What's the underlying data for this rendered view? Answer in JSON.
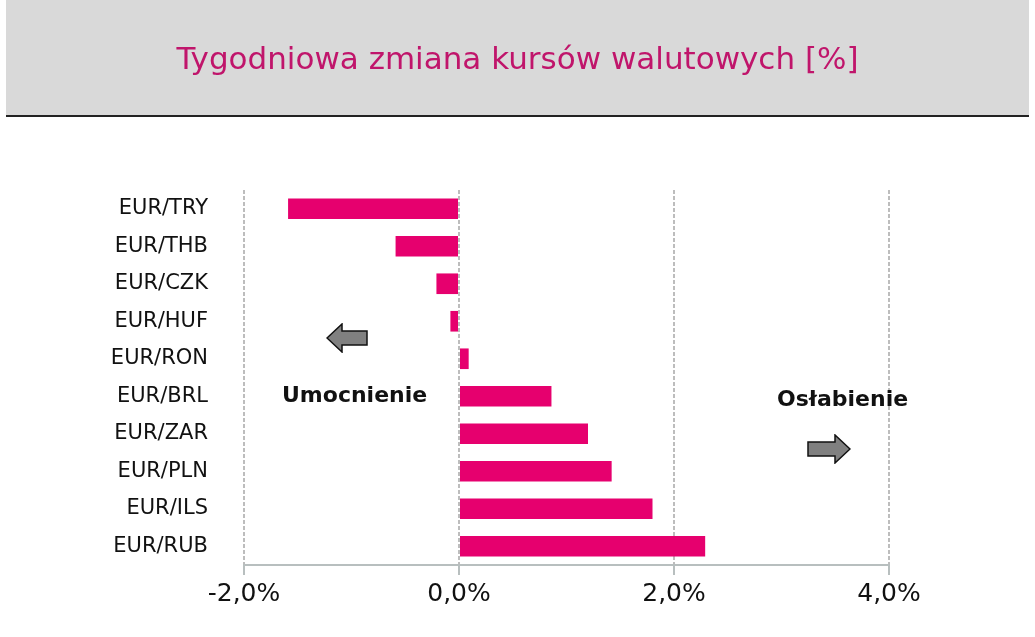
{
  "chart_data": {
    "type": "bar",
    "orientation": "horizontal",
    "title": "Tygodniowa zmiana kursów walutowych [%]",
    "categories": [
      "EUR/TRY",
      "EUR/THB",
      "EUR/CZK",
      "EUR/HUF",
      "EUR/RON",
      "EUR/BRL",
      "EUR/ZAR",
      "EUR/PLN",
      "EUR/ILS",
      "EUR/RUB"
    ],
    "values": [
      -1.59,
      -0.59,
      -0.21,
      -0.08,
      0.09,
      0.86,
      1.2,
      1.42,
      1.8,
      2.29
    ],
    "color": "#e6006e",
    "xlim": [
      -2,
      4
    ],
    "xticks": [
      {
        "value": -2,
        "label": "-2,0%"
      },
      {
        "value": 0,
        "label": "0,0%"
      },
      {
        "value": 2,
        "label": "2,0%"
      },
      {
        "value": 4,
        "label": "4,0%"
      }
    ],
    "grid": "x",
    "legend": false,
    "annotations": [
      "Umocnienie",
      "Osłabienie"
    ]
  }
}
